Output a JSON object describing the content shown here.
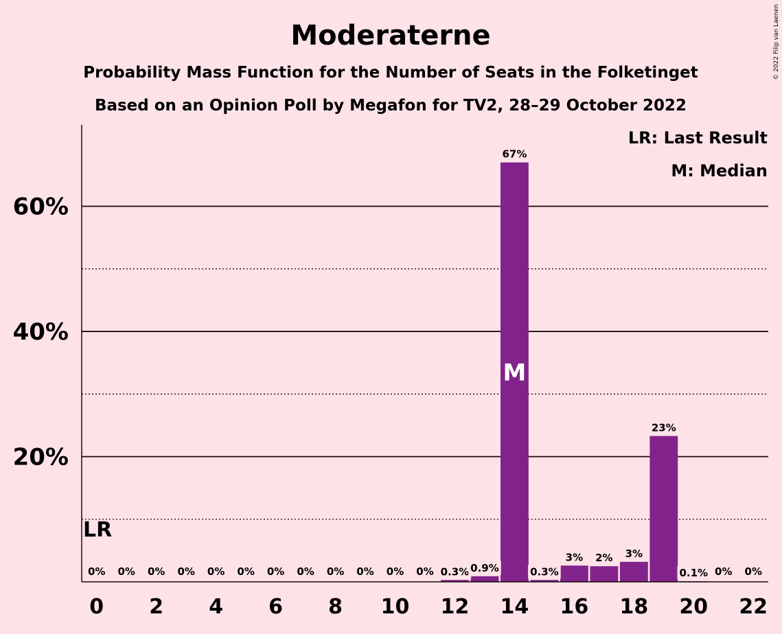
{
  "chart_data": {
    "type": "bar",
    "title": "Moderaterne",
    "subtitle_1": "Probability Mass Function for the Number of Seats in the Folketinget",
    "subtitle_2": "Based on an Opinion Poll by Megafon for TV2, 28–29 October 2022",
    "copyright": "© 2022 Filip van Laenen",
    "legend": [
      "LR: Last Result",
      "M: Median"
    ],
    "legend_placement": "top-right",
    "last_result": {
      "seats": 0,
      "label": "LR"
    },
    "median": {
      "seats": 14,
      "label": "M"
    },
    "categories": [
      0,
      1,
      2,
      3,
      4,
      5,
      6,
      7,
      8,
      9,
      10,
      11,
      12,
      13,
      14,
      15,
      16,
      17,
      18,
      19,
      20,
      21,
      22
    ],
    "values": [
      0,
      0,
      0,
      0,
      0,
      0,
      0,
      0,
      0,
      0,
      0,
      0,
      0.3,
      0.9,
      67,
      0.3,
      2.6,
      2.5,
      3.2,
      23.3,
      0.1,
      0,
      0
    ],
    "value_labels": [
      "0%",
      "0%",
      "0%",
      "0%",
      "0%",
      "0%",
      "0%",
      "0%",
      "0%",
      "0%",
      "0%",
      "0%",
      "0.3%",
      "0.9%",
      "67%",
      "0.3%",
      "3%",
      "2%",
      "3%",
      "23%",
      "0.1%",
      "0%",
      "0%"
    ],
    "xticks": [
      "0",
      "2",
      "4",
      "6",
      "8",
      "10",
      "12",
      "14",
      "16",
      "18",
      "20",
      "22"
    ],
    "yticks": [
      "20%",
      "40%",
      "60%"
    ],
    "ytick_values": [
      20,
      40,
      60
    ],
    "ylim": [
      0,
      73
    ],
    "xlabel": "",
    "ylabel": "",
    "grid": {
      "major": [
        20,
        40,
        60
      ],
      "minor": [
        10,
        30,
        50
      ]
    },
    "colors": {
      "bar": "#82238B",
      "background": "#FDE3E8",
      "text": "#1A0A0A"
    }
  }
}
